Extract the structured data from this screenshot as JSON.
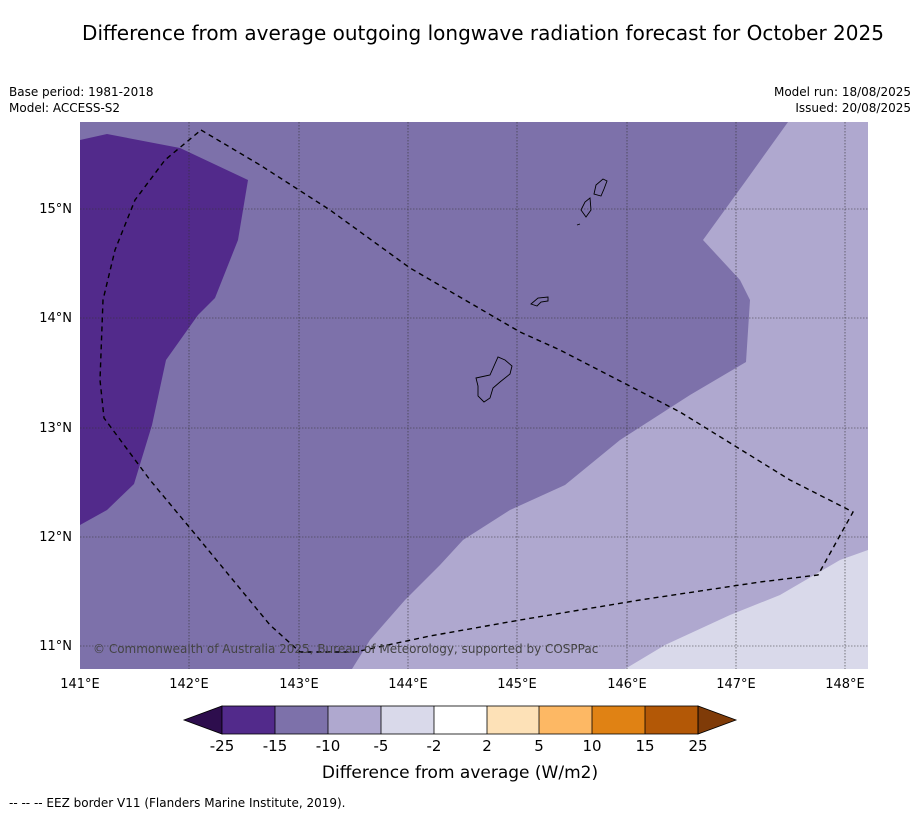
{
  "title": "Difference from average outgoing longwave radiation forecast for October 2025",
  "base_period": "Base period: 1981-2018",
  "model": "Model: ACCESS-S2",
  "model_run": "Model run: 18/08/2025",
  "issued": "Issued: 20/08/2025",
  "copyright": "© Commonwealth of Australia 2025, Bureau of Meteorology, supported by COSPPac",
  "footnote": "--  --  -- EEZ border V11 (Flanders Marine Institute, 2019).",
  "map": {
    "lon_labels": [
      "141°E",
      "142°E",
      "143°E",
      "144°E",
      "145°E",
      "146°E",
      "147°E",
      "148°E"
    ],
    "lat_labels": [
      "15°N",
      "14°N",
      "13°N",
      "12°N",
      "11°N"
    ],
    "lon_range": [
      141.0,
      148.2
    ],
    "lat_range": [
      10.8,
      15.8
    ],
    "gridlines": true
  },
  "colorbar": {
    "label": "Difference from average (W/m2)",
    "ticks": [
      "-25",
      "-15",
      "-10",
      "-5",
      "-2",
      "2",
      "5",
      "10",
      "15",
      "25"
    ],
    "colors": [
      "#522a8b",
      "#7d71aa",
      "#afa8cf",
      "#d9d9ea",
      "#ffffff",
      "#fde1b7",
      "#fdb864",
      "#e08214",
      "#b35806"
    ],
    "extend_low_color": "#2d0d4d",
    "extend_high_color": "#7f3b08"
  },
  "legend_colors": {
    "band_lt_minus15": "#522a8b",
    "band_minus15_minus10": "#7d71aa",
    "band_minus10_minus5": "#afa8cf",
    "band_minus5_minus2": "#d9d9ea"
  }
}
